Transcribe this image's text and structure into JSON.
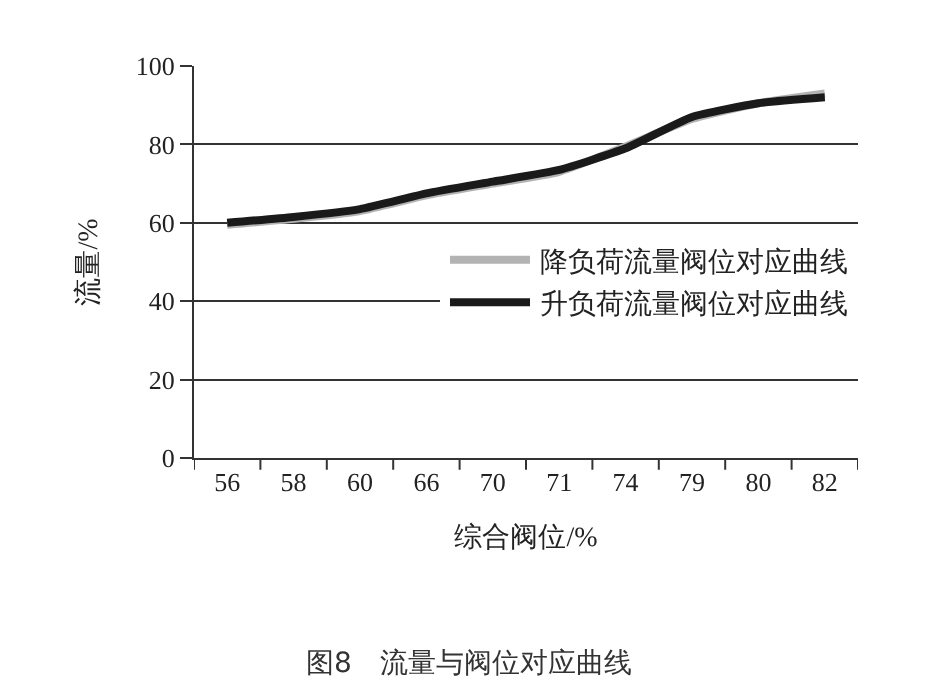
{
  "chart_data": {
    "type": "line",
    "title": "图8　流量与阀位对应曲线",
    "xlabel": "综合阀位/%",
    "ylabel": "流量/%",
    "categories": [
      "56",
      "58",
      "60",
      "66",
      "70",
      "71",
      "74",
      "79",
      "80",
      "82"
    ],
    "series": [
      {
        "name": "降负荷流量阀位对应曲线",
        "color": "#b3b3b3",
        "values": [
          59.5,
          61,
          63,
          67,
          70,
          73,
          79.5,
          86.5,
          90.5,
          93
        ]
      },
      {
        "name": "升负荷流量阀位对应曲线",
        "color": "#1a1a1a",
        "values": [
          60,
          61.5,
          63.5,
          67.5,
          70.5,
          73.5,
          79,
          87,
          90.5,
          92
        ]
      }
    ],
    "ylim": [
      0,
      100
    ],
    "yticks": [
      0,
      20,
      40,
      60,
      80,
      100
    ],
    "grid": "y",
    "legend": "right",
    "marker": "none",
    "line_style": "solid"
  }
}
